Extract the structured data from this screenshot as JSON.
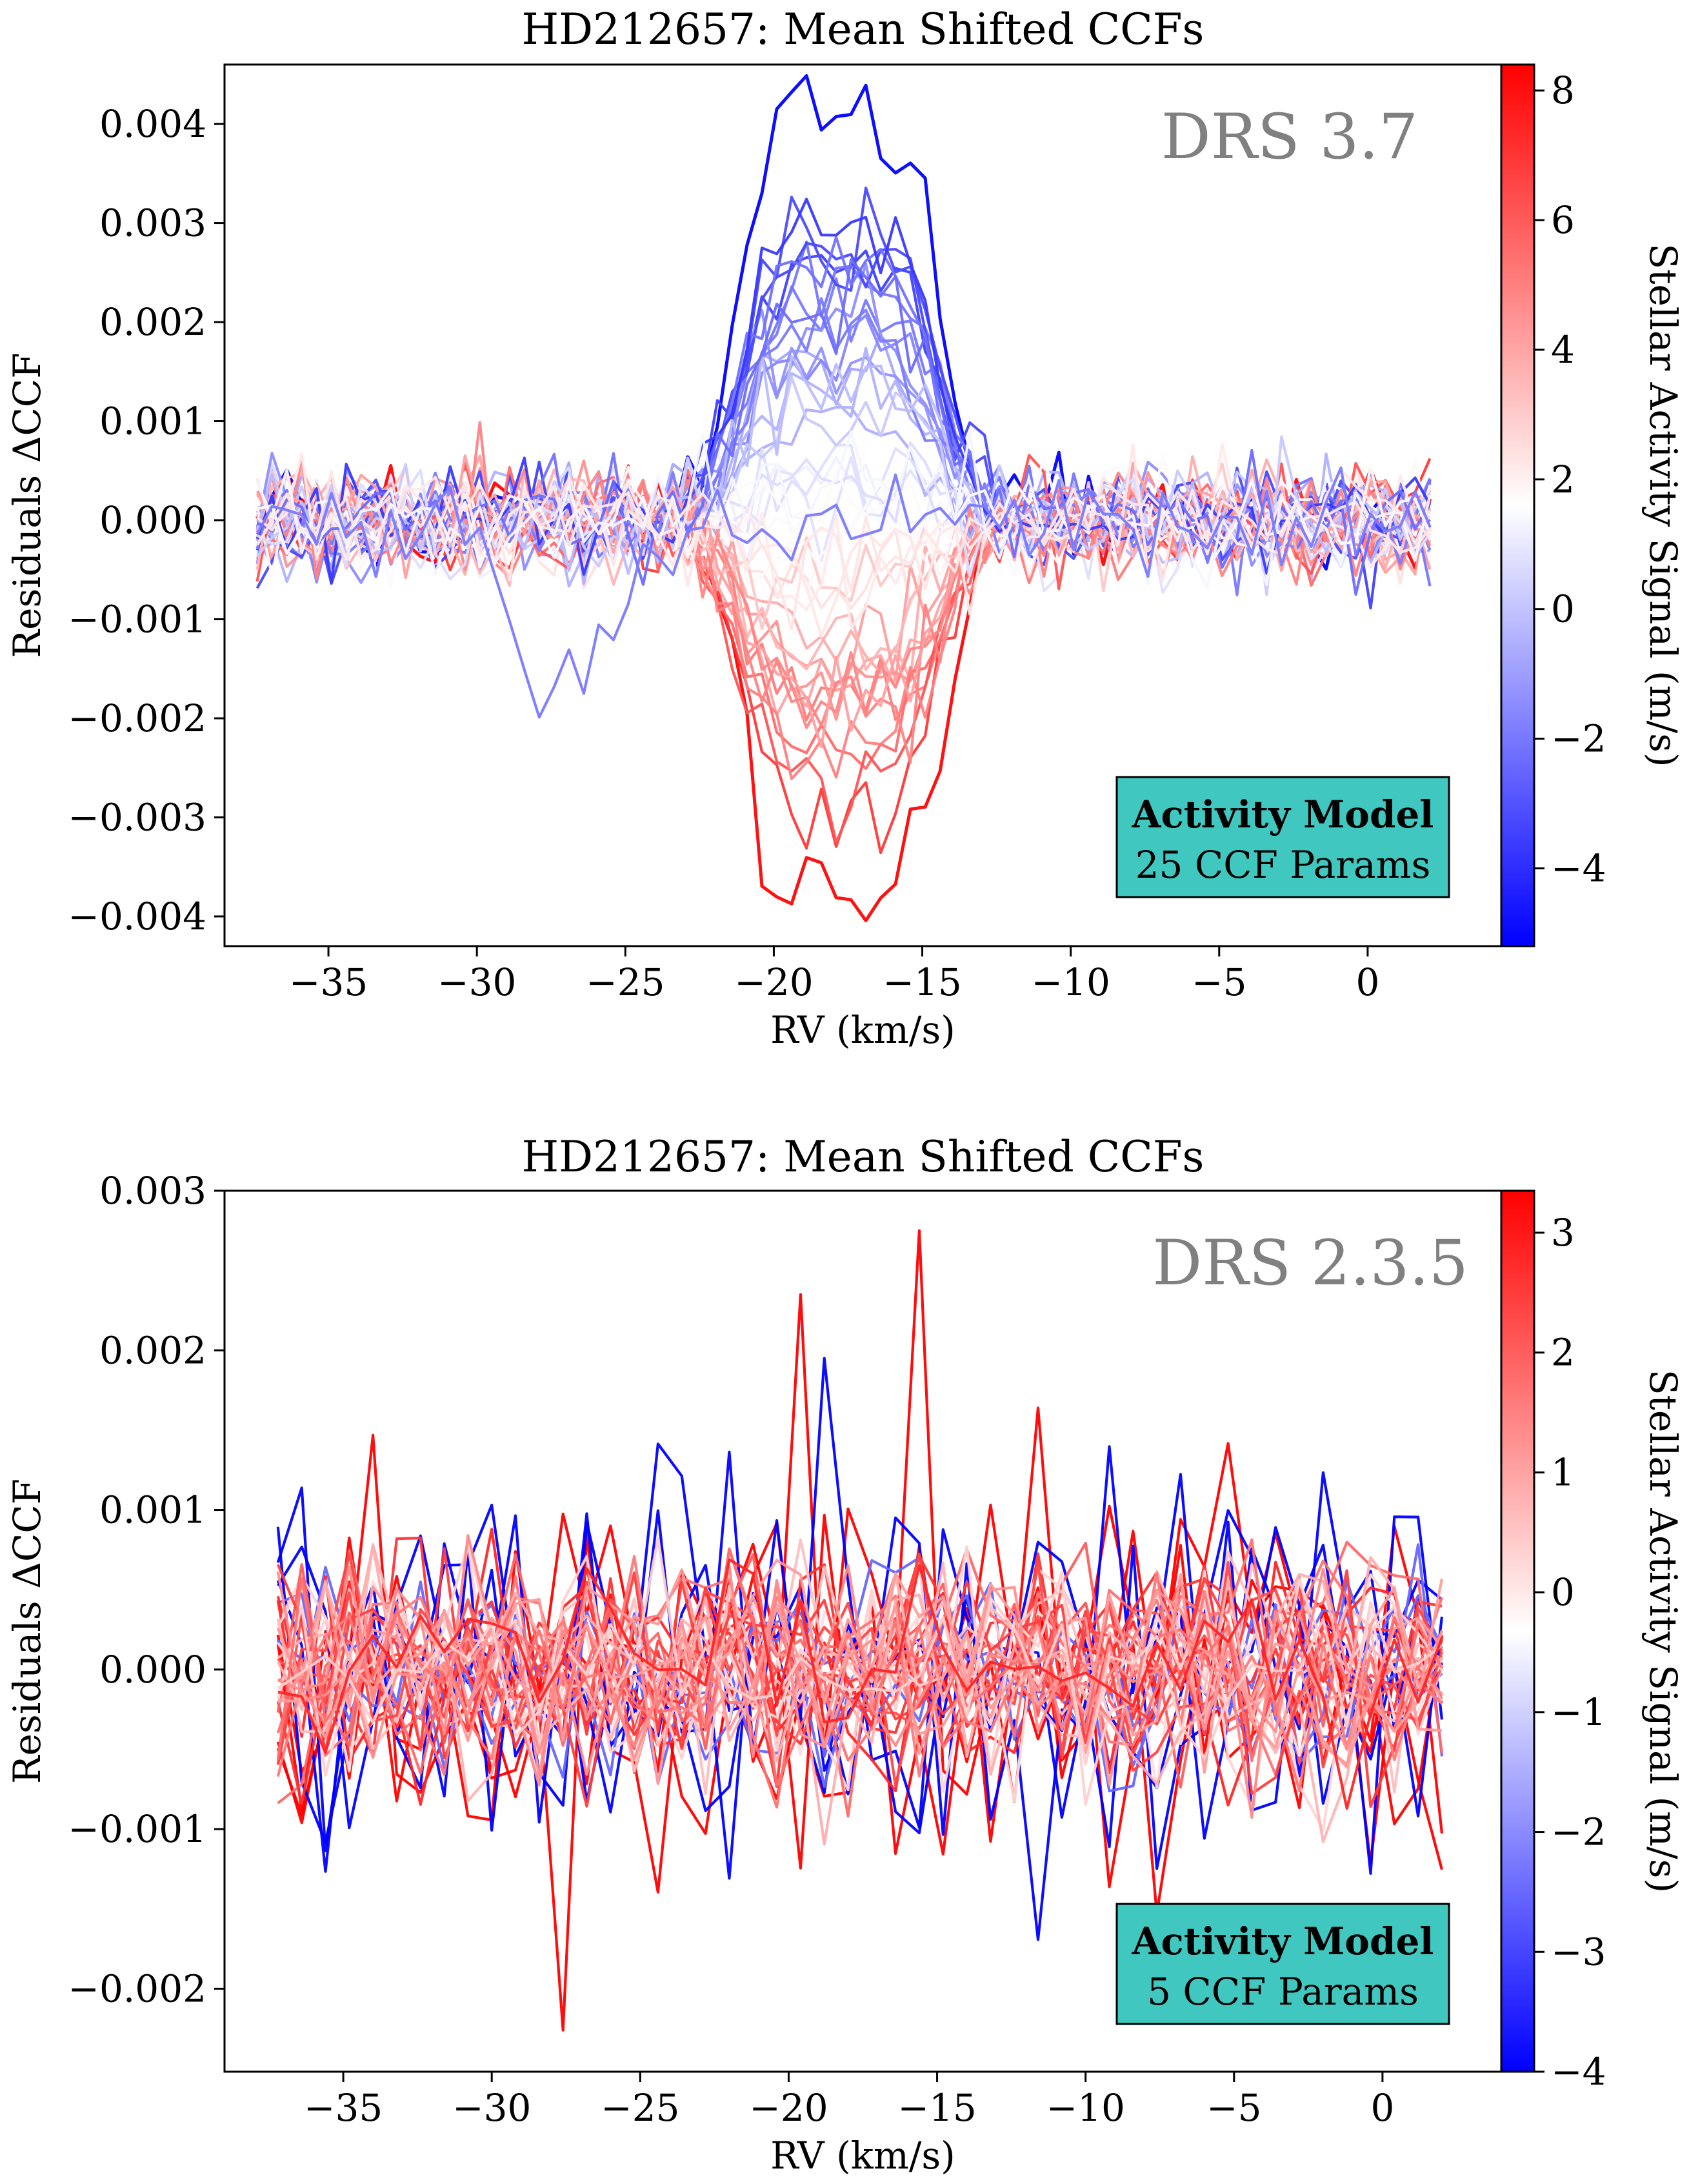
{
  "chart_data": [
    {
      "type": "line",
      "title": "HD212657: Mean Shifted CCFs",
      "xlabel": "RV (km/s)",
      "ylabel": "Residuals ΔCCF",
      "xlim": [
        -38.5,
        4.5
      ],
      "ylim": [
        -0.0043,
        0.0046
      ],
      "xticks": [
        -35,
        -30,
        -25,
        -20,
        -15,
        -10,
        -5,
        0
      ],
      "xtick_labels": [
        "−35",
        "−30",
        "−25",
        "−20",
        "−15",
        "−10",
        "−5",
        "0"
      ],
      "yticks": [
        0.004,
        0.003,
        0.002,
        0.001,
        0.0,
        -0.001,
        -0.002,
        -0.003,
        -0.004
      ],
      "ytick_labels": [
        "0.004",
        "0.003",
        "0.002",
        "0.001",
        "0.000",
        "−0.001",
        "−0.002",
        "−0.003",
        "−0.004"
      ],
      "annotation": "DRS 3.7",
      "box": {
        "line1": "Activity Model",
        "line2": "25 CCF Params"
      },
      "colorbar": {
        "label": "Stellar Activity Signal (m/s)",
        "range": [
          -5.2,
          8.4
        ],
        "ticks": [
          8,
          6,
          4,
          2,
          0,
          -2,
          -4
        ],
        "tick_labels": [
          "8",
          "6",
          "4",
          "2",
          "0",
          "−2",
          "−4"
        ],
        "cmap": [
          "#0000ff",
          "#ffffff",
          "#ff0000"
        ]
      },
      "grid": false,
      "x": {
        "start": -37.4,
        "end": 2.4,
        "step": 0.5
      },
      "profile": {
        "center": -17.8,
        "sigma": 2.6
      },
      "series_summary": {
        "count": 46,
        "min_amplitude": -0.0039,
        "max_amplitude": 0.0042,
        "noise": 0.00028
      },
      "colors": {
        "axis": "#000000",
        "annotation": "#808080",
        "box_fill": "#40c8c0"
      }
    },
    {
      "type": "line",
      "title": "HD212657: Mean Shifted CCFs",
      "xlabel": "RV (km/s)",
      "ylabel": "Residuals ΔCCF",
      "xlim": [
        -39.0,
        4.0
      ],
      "ylim": [
        -0.00252,
        0.003
      ],
      "xticks": [
        -35,
        -30,
        -25,
        -20,
        -15,
        -10,
        -5,
        0
      ],
      "xtick_labels": [
        "−35",
        "−30",
        "−25",
        "−20",
        "−15",
        "−10",
        "−5",
        "0"
      ],
      "yticks": [
        0.003,
        0.002,
        0.001,
        0.0,
        -0.001,
        -0.002
      ],
      "ytick_labels": [
        "0.003",
        "0.002",
        "0.001",
        "0.000",
        "−0.001",
        "−0.002"
      ],
      "annotation": "DRS 2.3.5",
      "box": {
        "line1": "Activity Model",
        "line2": "5 CCF Params"
      },
      "colorbar": {
        "label": "Stellar Activity Signal (m/s)",
        "range": [
          -4.0,
          3.35
        ],
        "ticks": [
          3,
          2,
          1,
          0,
          -1,
          -2,
          -3,
          -4
        ],
        "tick_labels": [
          "3",
          "2",
          "1",
          "0",
          "−1",
          "−2",
          "−3",
          "−4"
        ],
        "cmap": [
          "#0000ff",
          "#ffffff",
          "#ff0000"
        ]
      },
      "grid": false,
      "x": {
        "start": -37.2,
        "end": 2.2,
        "step": 0.8
      },
      "series_summary": {
        "count": 40,
        "noise": 0.00055,
        "max": 0.00275,
        "min": -0.00226
      },
      "colors": {
        "axis": "#000000",
        "annotation": "#808080",
        "box_fill": "#40c8c0"
      }
    }
  ]
}
